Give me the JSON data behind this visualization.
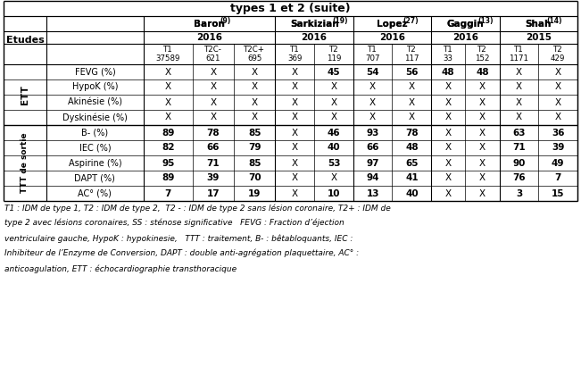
{
  "title": "types 1 et 2 (suite)",
  "study_groups": [
    {
      "name": "Baron",
      "sup": "(9)",
      "cols": [
        0,
        1,
        2
      ],
      "year": "2016"
    },
    {
      "name": "Sarkizian",
      "sup": "(19)",
      "cols": [
        3,
        4
      ],
      "year": "2016"
    },
    {
      "name": "Lopez",
      "sup": "(27)",
      "cols": [
        5,
        6
      ],
      "year": "2016"
    },
    {
      "name": "Gaggin",
      "sup": "(13)",
      "cols": [
        7,
        8
      ],
      "year": "2016"
    },
    {
      "name": "Shah",
      "sup": "(14)",
      "cols": [
        9,
        10
      ],
      "year": "2015"
    }
  ],
  "subtypes": [
    [
      "T1\n37589",
      "T2C-\n621",
      "T2C+\n695"
    ],
    [
      "T1\n369",
      "T2\n119"
    ],
    [
      "T1\n707",
      "T2\n117"
    ],
    [
      "T1\n33",
      "T2\n152"
    ],
    [
      "T1\n1171",
      "T2\n429"
    ]
  ],
  "row_groups": [
    {
      "group_label": "ETT",
      "rows": [
        {
          "label": "FEVG (%)",
          "values": [
            "X",
            "X",
            "X",
            "X",
            "45",
            "54",
            "56",
            "48",
            "48",
            "X",
            "X"
          ]
        },
        {
          "label": "HypoK (%)",
          "values": [
            "X",
            "X",
            "X",
            "X",
            "X",
            "X",
            "X",
            "X",
            "X",
            "X",
            "X"
          ]
        },
        {
          "label": "Akinésie (%)",
          "values": [
            "X",
            "X",
            "X",
            "X",
            "X",
            "X",
            "X",
            "X",
            "X",
            "X",
            "X"
          ]
        },
        {
          "label": "Dyskinésie (%)",
          "values": [
            "X",
            "X",
            "X",
            "X",
            "X",
            "X",
            "X",
            "X",
            "X",
            "X",
            "X"
          ]
        }
      ]
    },
    {
      "group_label": "TTT de sortie",
      "rows": [
        {
          "label": "B- (%)",
          "values": [
            "89",
            "78",
            "85",
            "X",
            "46",
            "93",
            "78",
            "X",
            "X",
            "63",
            "36"
          ]
        },
        {
          "label": "IEC (%)",
          "values": [
            "82",
            "66",
            "79",
            "X",
            "40",
            "66",
            "48",
            "X",
            "X",
            "71",
            "39"
          ]
        },
        {
          "label": "Aspirine (%)",
          "values": [
            "95",
            "71",
            "85",
            "X",
            "53",
            "97",
            "65",
            "X",
            "X",
            "90",
            "49"
          ]
        },
        {
          "label": "DAPT (%)",
          "values": [
            "89",
            "39",
            "70",
            "X",
            "X",
            "94",
            "41",
            "X",
            "X",
            "76",
            "7"
          ]
        },
        {
          "label": "AC° (%)",
          "values": [
            "7",
            "17",
            "19",
            "X",
            "10",
            "13",
            "40",
            "X",
            "X",
            "3",
            "15"
          ]
        }
      ]
    }
  ],
  "footnote_lines": [
    "T1 : IDM de type 1, T2 : IDM de type 2,  T2 - : IDM de type 2 sans lésion coronaire, T2+ : IDM de",
    "type 2 avec lésions coronaires, SS : sténose significative   FEVG : Fraction d’éjection",
    "ventriculaire gauche, HypoK : hypokinesie,   TTT : traitement, B- : bêtabloquants, IEC :",
    "Inhibiteur de l’Enzyme de Conversion, DAPT : double anti-agrégation plaquettaire, AC° :",
    "anticoagulation, ETT : échocardiographie transthoracique"
  ],
  "fig_w": 6.51,
  "fig_h": 4.21,
  "dpi": 100
}
